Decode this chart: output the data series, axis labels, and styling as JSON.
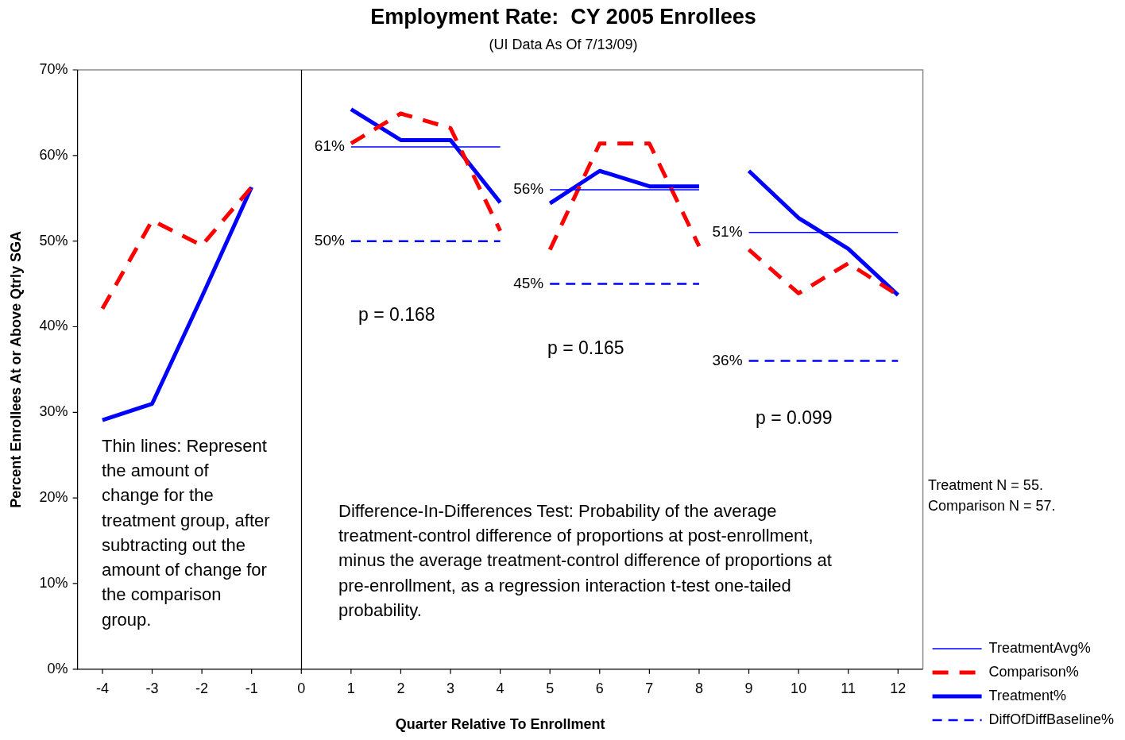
{
  "chart_data": {
    "type": "line",
    "title": "Employment Rate:  CY 2005 Enrollees",
    "subtitle": "(UI Data As Of 7/13/09)",
    "xlabel": "Quarter Relative To Enrollment",
    "ylabel": "Percent Enrollees At or Above Qtrly SGA",
    "series": [
      {
        "name": "TreatmentAvg%",
        "color": "#0000ff",
        "line_style": "solid",
        "x": [
          1,
          2,
          3,
          4
        ],
        "values": [
          61,
          61,
          61,
          61
        ]
      },
      {
        "color": "#0000ff",
        "line_style": "solid",
        "x": [
          5,
          6,
          7,
          8
        ],
        "values": [
          56,
          56,
          56,
          56
        ]
      },
      {
        "color": "#0000ff",
        "line_style": "solid",
        "x": [
          9,
          10,
          11,
          12
        ],
        "values": [
          51,
          51,
          51,
          51
        ]
      },
      {
        "name": "Comparison%",
        "color": "#ff0000",
        "line_style": "dashed",
        "x": [
          -4,
          -3,
          -2,
          -1
        ],
        "values": [
          42.1,
          52.4,
          49.5,
          56.3
        ]
      },
      {
        "color": "#ff0000",
        "line_style": "dashed",
        "x": [
          1,
          2,
          3,
          4
        ],
        "values": [
          61.4,
          64.9,
          63.2,
          51.2
        ]
      },
      {
        "color": "#ff0000",
        "line_style": "dashed",
        "x": [
          5,
          6,
          7,
          8
        ],
        "values": [
          49,
          61.4,
          61.4,
          49.4
        ]
      },
      {
        "color": "#ff0000",
        "line_style": "dashed",
        "x": [
          9,
          10,
          11,
          12
        ],
        "values": [
          49,
          43.9,
          47.4,
          43.7
        ]
      },
      {
        "name": "Treatment%",
        "color": "#0000ff",
        "line_style": "solid",
        "x": [
          -4,
          -3,
          -2,
          -1
        ],
        "values": [
          29.1,
          31,
          43.5,
          56.3
        ]
      },
      {
        "color": "#0000ff",
        "line_style": "solid",
        "x": [
          1,
          2,
          3,
          4
        ],
        "values": [
          65.4,
          61.8,
          61.8,
          54.5
        ]
      },
      {
        "color": "#0000ff",
        "line_style": "solid",
        "x": [
          5,
          6,
          7,
          8
        ],
        "values": [
          54.4,
          58.2,
          56.4,
          56.4
        ]
      },
      {
        "color": "#0000ff",
        "line_style": "solid",
        "x": [
          9,
          10,
          11,
          12
        ],
        "values": [
          58.2,
          52.7,
          49.1,
          43.7
        ]
      },
      {
        "name": "DiffOfDiffBaseline%",
        "color": "#0000ff",
        "line_style": "dashed",
        "x": [
          1,
          2,
          3,
          4
        ],
        "values": [
          50,
          50,
          50,
          50
        ]
      },
      {
        "color": "#0000ff",
        "line_style": "dashed",
        "x": [
          5,
          6,
          7,
          8
        ],
        "values": [
          45,
          45,
          45,
          45
        ]
      },
      {
        "color": "#0000ff",
        "line_style": "dashed",
        "x": [
          9,
          10,
          11,
          12
        ],
        "values": [
          36,
          36,
          36,
          36
        ]
      }
    ],
    "xlim": [
      -4.5,
      12.5
    ],
    "xticks": [
      -4,
      -3,
      -2,
      -1,
      0,
      1,
      2,
      3,
      4,
      5,
      6,
      7,
      8,
      9,
      10,
      11,
      12
    ],
    "ylim": [
      0,
      70
    ],
    "yticks": [
      {
        "value": 0,
        "label": "0%"
      },
      {
        "value": 10,
        "label": "10%"
      },
      {
        "value": 20,
        "label": "20%"
      },
      {
        "value": 30,
        "label": "30%"
      },
      {
        "value": 40,
        "label": "40%"
      },
      {
        "value": 50,
        "label": "50%"
      },
      {
        "value": 60,
        "label": "60%"
      },
      {
        "value": 70,
        "label": "70%"
      }
    ],
    "ref_lines": [
      {
        "axis": "x",
        "value": 0,
        "color": "#000000"
      }
    ],
    "grid": false,
    "legend": "bottom right",
    "marker": "none",
    "annotations": [
      "Thin lines: Represent the amount of change for the treatment group, after subtracting out the amount of change for the comparison group.",
      "Difference-In-Differences Test: Probability of the average treatment-control difference of proportions at post-enrollment, minus the average treatment-control difference of proportions at pre-enrollment, as a regression interaction t-test one-tailed probability.",
      "p = 0.168",
      "p = 0.165",
      "p = 0.099",
      "Treatment N = 55.",
      "Comparison N = 57.",
      {
        "text": "61%",
        "x": 1,
        "y": 61
      },
      {
        "text": "50%",
        "x": 1,
        "y": 50
      },
      {
        "text": "56%",
        "x": 5,
        "y": 56
      },
      {
        "text": "45%",
        "x": 5,
        "y": 45
      },
      {
        "text": "51%",
        "x": 9,
        "y": 51
      },
      {
        "text": "36%",
        "x": 9,
        "y": 36
      }
    ]
  }
}
